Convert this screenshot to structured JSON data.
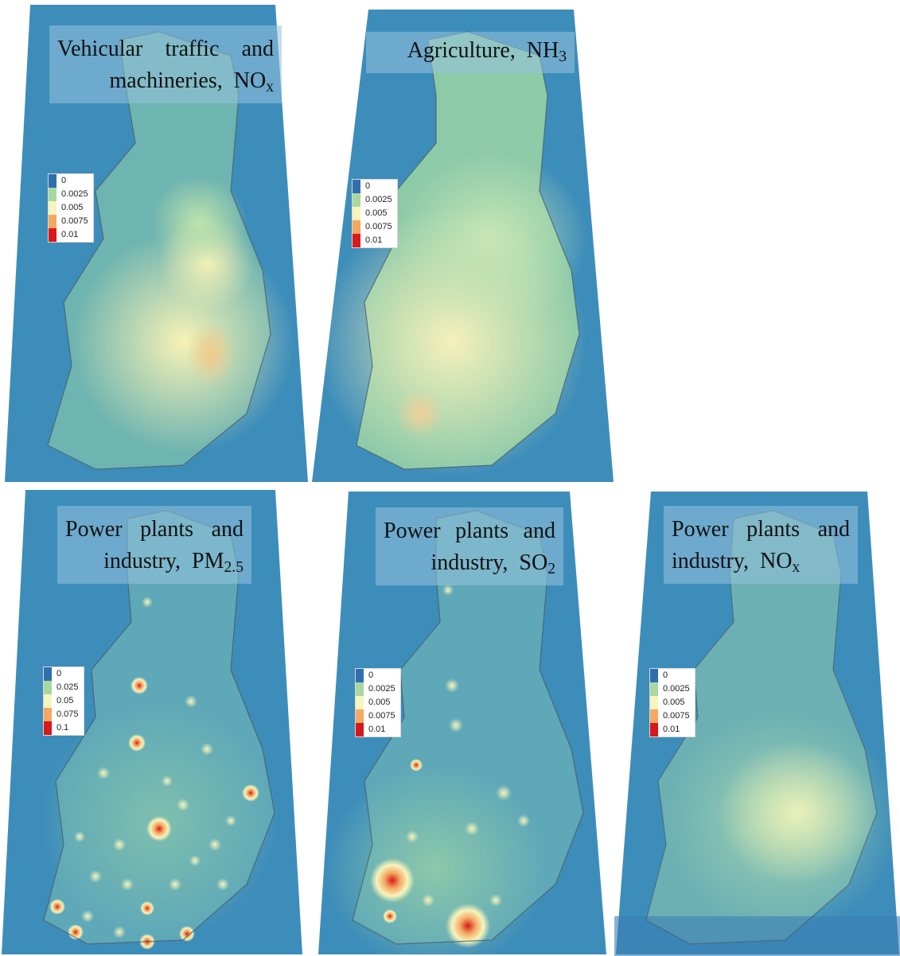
{
  "colors": {
    "sea": "#3d8dba",
    "sea_light": "#5aa6c3",
    "ramp": [
      "#2f6fb0",
      "#a8d8a0",
      "#f7f4bc",
      "#f4a862",
      "#d7191c"
    ],
    "title_bg": "#96c3dc",
    "border": "#4a5d66"
  },
  "panels": [
    {
      "id": "traffic",
      "title_line1": "Vehicular traffic and",
      "title_line2_text": "machineries,",
      "species_base": "NO",
      "species_sub": "x",
      "legend": [
        "0",
        "0.0025",
        "0.005",
        "0.0075",
        "0.01"
      ]
    },
    {
      "id": "agriculture",
      "title_line1_text": "Agriculture,",
      "species_base": "NH",
      "species_sub": "3",
      "legend": [
        "0",
        "0.0025",
        "0.005",
        "0.0075",
        "0.01"
      ]
    },
    {
      "id": "industry-pm",
      "title_line1": "Power plants and",
      "title_line2_text": "industry,",
      "species_base": "PM",
      "species_sub": "2.5",
      "legend": [
        "0",
        "0.025",
        "0.05",
        "0.075",
        "0.1"
      ]
    },
    {
      "id": "industry-so2",
      "title_line1": "Power plants and",
      "title_line2_text": "industry,",
      "species_base": "SO",
      "species_sub": "2",
      "legend": [
        "0",
        "0.0025",
        "0.005",
        "0.0075",
        "0.01"
      ]
    },
    {
      "id": "industry-nox",
      "title_line1": "Power plants and",
      "title_line2_text": "industry,",
      "species_base": "NO",
      "species_sub": "x",
      "legend": [
        "0",
        "0.0025",
        "0.005",
        "0.0075",
        "0.01"
      ]
    }
  ]
}
